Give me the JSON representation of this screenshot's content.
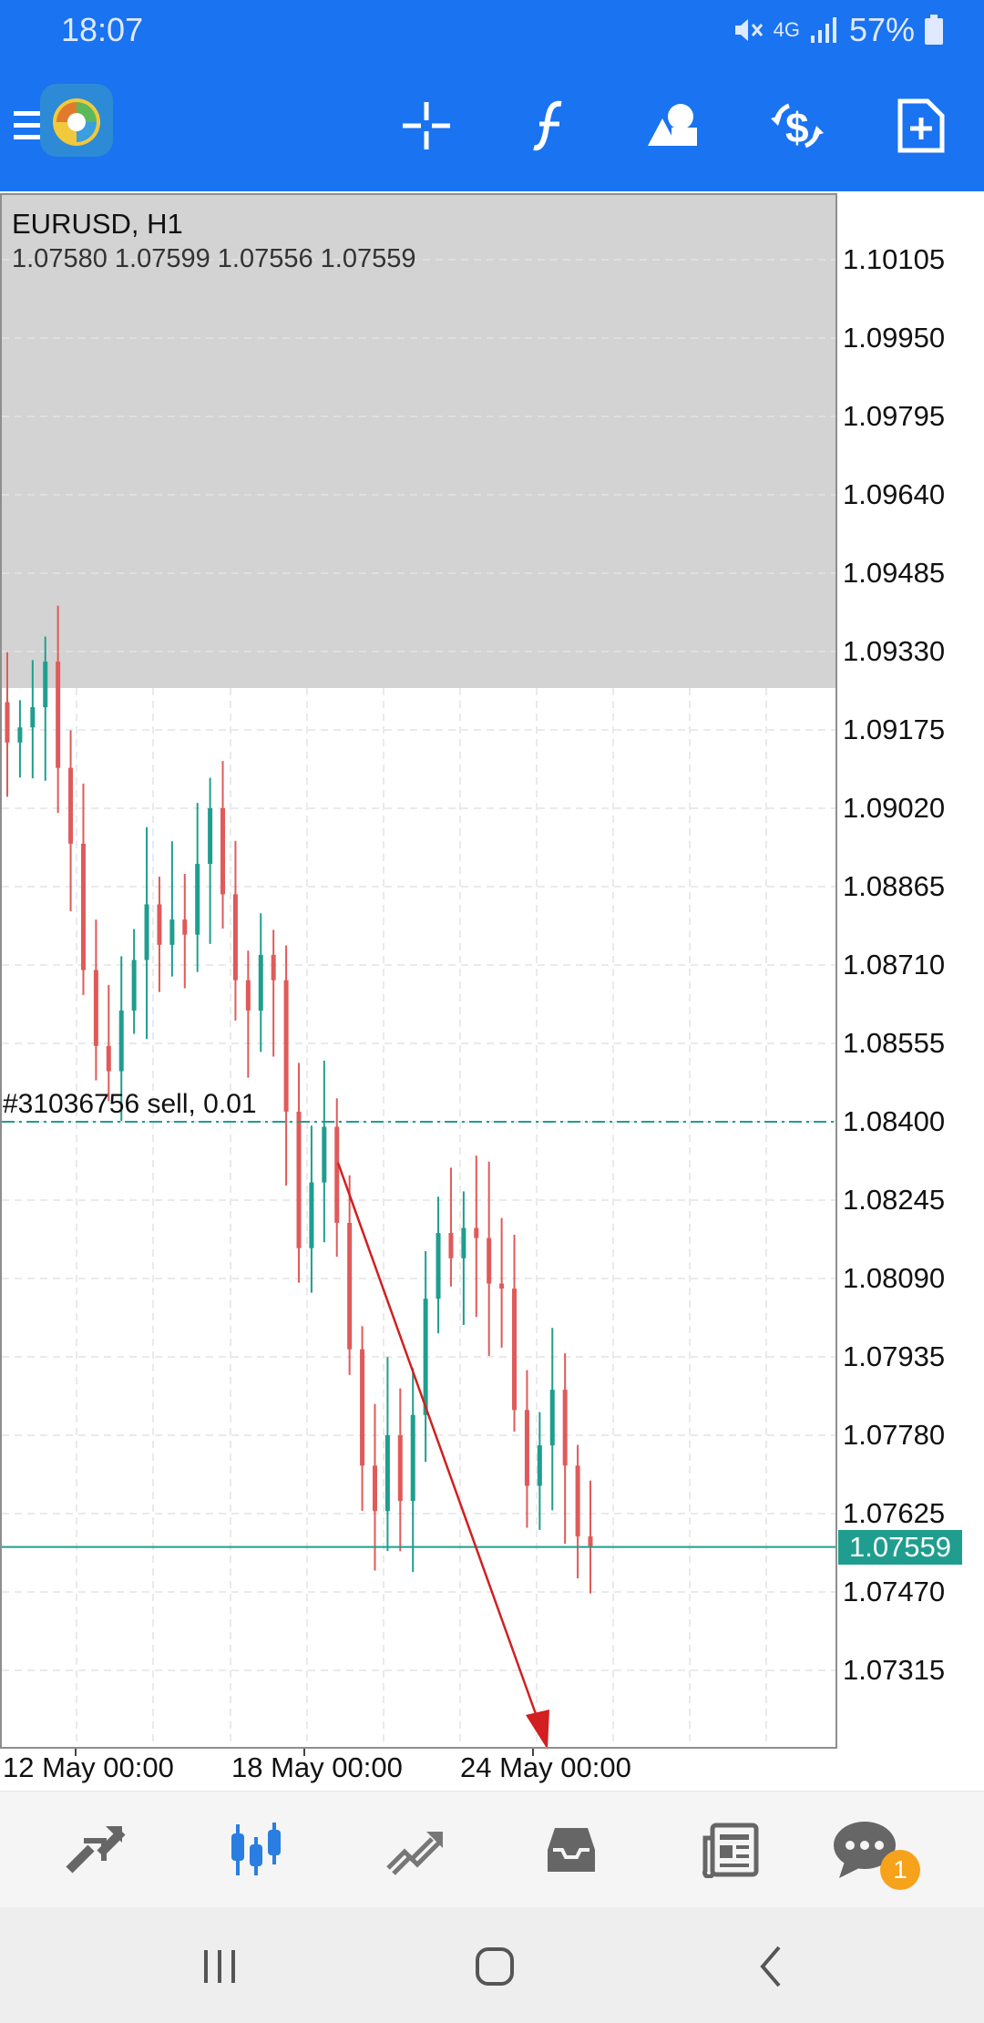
{
  "status_bar": {
    "time": "18:07",
    "network": "4G",
    "battery": "57%"
  },
  "toolbar": {
    "icons": [
      "menu-icon",
      "app-logo",
      "crosshair-icon",
      "indicators-icon",
      "objects-icon",
      "trade-icon",
      "new-order-icon"
    ]
  },
  "chart": {
    "symbol": "EURUSD, H1",
    "ohlc": "1.07580 1.07599 1.07556 1.07559",
    "y_ticks": [
      "1.10105",
      "1.09950",
      "1.09795",
      "1.09640",
      "1.09485",
      "1.09330",
      "1.09175",
      "1.09020",
      "1.08865",
      "1.08710",
      "1.08555",
      "1.08400",
      "1.08245",
      "1.08090",
      "1.07935",
      "1.07780",
      "1.07625",
      "1.07470",
      "1.07315"
    ],
    "x_ticks": [
      "12 May 00:00",
      "18 May 00:00",
      "24 May 00:00"
    ],
    "current_price": "1.07559",
    "order_label": "#31036756 sell, 0.01",
    "order_price": 1.084,
    "colors": {
      "bull": "#1f9e8f",
      "bear": "#e05a5a",
      "arrow": "#d21f1f",
      "grid": "#e3e3e3",
      "shade": "#d3d3d3"
    }
  },
  "chart_data": {
    "type": "candlestick",
    "series": [
      {
        "name": "EURUSD, H1",
        "close": [
          1.0915,
          1.0918,
          1.0922,
          1.0931,
          1.091,
          1.0895,
          1.087,
          1.0855,
          1.085,
          1.0862,
          1.0872,
          1.0883,
          1.0875,
          1.088,
          1.0877,
          1.0891,
          1.0902,
          1.0885,
          1.0868,
          1.0862,
          1.0873,
          1.0868,
          1.0842,
          1.0815,
          1.0828,
          1.0839,
          1.082,
          1.0795,
          1.0772,
          1.0763,
          1.0778,
          1.0765,
          1.0782,
          1.0805,
          1.0818,
          1.0813,
          1.0819,
          1.0817,
          1.0808,
          1.0807,
          1.0783,
          1.0768,
          1.0776,
          1.0787,
          1.0772,
          1.0758,
          1.0756
        ]
      }
    ],
    "ylim": [
      1.0725,
      1.1025
    ],
    "x_ticks": [
      "12 May 00:00",
      "18 May 00:00",
      "24 May 00:00"
    ]
  },
  "bottom_nav": {
    "items": [
      "quotes-icon",
      "chart-icon",
      "trade-icon",
      "history-icon",
      "news-icon",
      "messages-icon"
    ],
    "messages_badge": "1"
  }
}
